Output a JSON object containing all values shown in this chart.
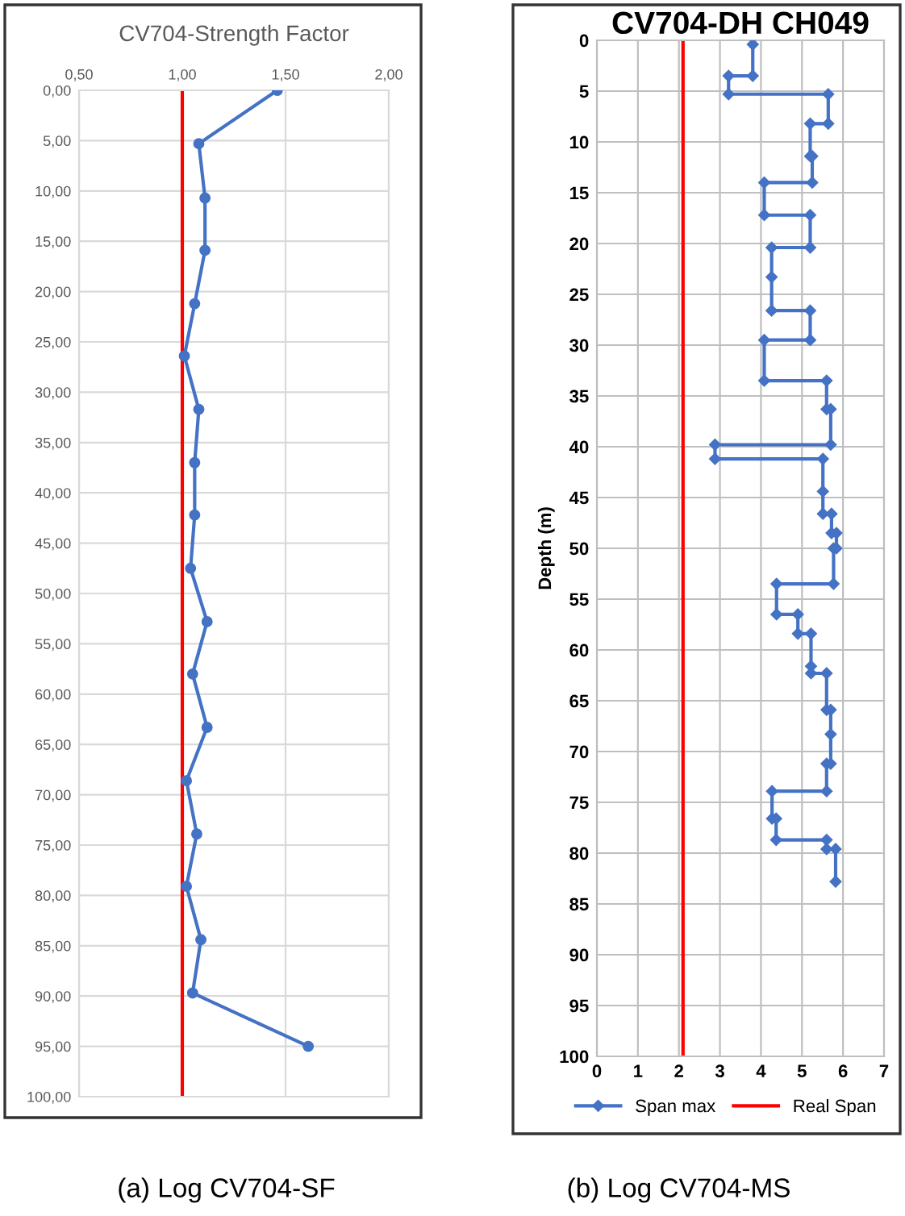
{
  "chart_data": [
    {
      "type": "line",
      "title": "CV704-Strength Factor",
      "grid": true,
      "marker": "circle",
      "line_style": "solid",
      "legend": false,
      "xlim": [
        0.5,
        2.0
      ],
      "xticks": [
        {
          "value": 0.5,
          "label": "0,50"
        },
        {
          "value": 1.0,
          "label": "1,00"
        },
        {
          "value": 1.5,
          "label": "1,50"
        },
        {
          "value": 2.0,
          "label": "2,00"
        }
      ],
      "ylim": [
        100,
        0
      ],
      "yticks": [
        {
          "value": 0,
          "label": "0,00"
        },
        {
          "value": 5,
          "label": "5,00"
        },
        {
          "value": 10,
          "label": "10,00"
        },
        {
          "value": 15,
          "label": "15,00"
        },
        {
          "value": 20,
          "label": "20,00"
        },
        {
          "value": 25,
          "label": "25,00"
        },
        {
          "value": 30,
          "label": "30,00"
        },
        {
          "value": 35,
          "label": "35,00"
        },
        {
          "value": 40,
          "label": "40,00"
        },
        {
          "value": 45,
          "label": "45,00"
        },
        {
          "value": 50,
          "label": "50,00"
        },
        {
          "value": 55,
          "label": "55,00"
        },
        {
          "value": 60,
          "label": "60,00"
        },
        {
          "value": 65,
          "label": "65,00"
        },
        {
          "value": 70,
          "label": "70,00"
        },
        {
          "value": 75,
          "label": "75,00"
        },
        {
          "value": 80,
          "label": "80,00"
        },
        {
          "value": 85,
          "label": "85,00"
        },
        {
          "value": 90,
          "label": "90,00"
        },
        {
          "value": 95,
          "label": "95,00"
        },
        {
          "value": 100,
          "label": "100,00"
        }
      ],
      "series": [
        {
          "color": "#4472c4",
          "x": [
            1.46,
            1.08,
            1.11,
            1.11,
            1.06,
            1.01,
            1.08,
            1.06,
            1.06,
            1.04,
            1.12,
            1.05,
            1.12,
            1.02,
            1.07,
            1.02,
            1.09,
            1.05,
            1.61
          ],
          "values": [
            0,
            5.3,
            10.7,
            15.9,
            21.2,
            26.4,
            31.7,
            37,
            42.2,
            47.5,
            52.8,
            58,
            63.3,
            68.6,
            73.9,
            79.1,
            84.4,
            89.7,
            95
          ]
        }
      ],
      "ref_lines": [
        {
          "axis": "x",
          "value": 1.0,
          "color": "#ff0000"
        }
      ],
      "annotations": [
        "(a) Log CV704-SF"
      ]
    },
    {
      "type": "line",
      "title": "CV704-DH CH049",
      "ylabel": "Depth (m)",
      "grid": true,
      "marker": "diamond",
      "line_style": "solid",
      "legend": "bottom",
      "xlim": [
        0,
        7
      ],
      "xticks": [
        0,
        1,
        2,
        3,
        4,
        5,
        6,
        7
      ],
      "ylim": [
        100,
        0
      ],
      "yticks": [
        0,
        5,
        10,
        15,
        20,
        25,
        30,
        35,
        40,
        45,
        50,
        55,
        60,
        65,
        70,
        75,
        80,
        85,
        90,
        95,
        100
      ],
      "series": [
        {
          "name": "Span max",
          "color": "#4472c4",
          "x": [
            3.8,
            3.8,
            3.21,
            3.21,
            5.64,
            5.64,
            5.2,
            5.2,
            5.25,
            5.25,
            4.08,
            4.08,
            5.2,
            5.2,
            4.26,
            4.26,
            4.26,
            5.2,
            5.2,
            4.08,
            4.08,
            5.6,
            5.6,
            5.7,
            5.7,
            2.88,
            2.88,
            5.51,
            5.51,
            5.51,
            5.72,
            5.72,
            5.84,
            5.84,
            5.77,
            5.77,
            4.38,
            4.38,
            4.9,
            4.9,
            5.22,
            5.22,
            5.22,
            5.6,
            5.6,
            5.7,
            5.7,
            5.7,
            5.6,
            5.6,
            4.27,
            4.27,
            4.37,
            4.37,
            5.6,
            5.6,
            5.82,
            5.82
          ],
          "values": [
            0.4,
            3.5,
            3.5,
            5.3,
            5.3,
            8.2,
            8.2,
            11.4,
            11.4,
            14,
            14,
            17.2,
            17.2,
            20.4,
            20.4,
            23.3,
            26.6,
            26.6,
            29.5,
            29.5,
            33.5,
            33.5,
            36.3,
            36.3,
            39.8,
            39.8,
            41.2,
            41.2,
            44.4,
            46.6,
            46.6,
            48.5,
            48.5,
            50,
            50,
            53.5,
            53.5,
            56.5,
            56.5,
            58.4,
            58.4,
            61.6,
            62.3,
            62.3,
            65.9,
            65.9,
            68.3,
            71.2,
            71.2,
            73.9,
            73.9,
            76.6,
            76.6,
            78.7,
            78.7,
            79.6,
            79.6,
            82.8
          ]
        }
      ],
      "ref_lines": [
        {
          "axis": "x",
          "value": 2.1,
          "label": "Real Span",
          "color": "#ff0000"
        }
      ],
      "annotations": [
        "(b) Log CV704-MS"
      ]
    }
  ]
}
